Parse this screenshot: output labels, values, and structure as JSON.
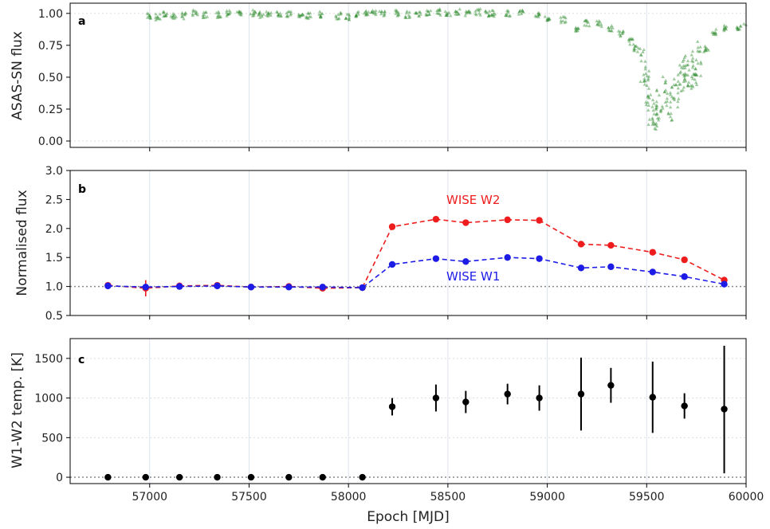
{
  "chart_data": [
    {
      "panel": "a",
      "type": "scatter",
      "ylabel": "ASAS-SN flux",
      "xlim": [
        56600,
        60000
      ],
      "ylim": [
        -0.05,
        1.08
      ],
      "yticks": [
        "0.00",
        "0.25",
        "0.50",
        "0.75",
        "1.00"
      ],
      "yticks_values": [
        0,
        0.25,
        0.5,
        0.75,
        1.0
      ],
      "vgrid": true,
      "hgrid_dotted": [
        0,
        1.0
      ],
      "color": "#2e8b2e",
      "marker": "triangle",
      "series": [
        {
          "x": [
            57000,
            57040,
            57080,
            57120,
            57170,
            57230,
            57280,
            57350,
            57400,
            57450,
            57520,
            57560,
            57600,
            57650,
            57700,
            57760,
            57800,
            57860,
            57950,
            58000,
            58050,
            58090,
            58130,
            58170,
            58250,
            58300,
            58350,
            58400,
            58450,
            58500,
            58550,
            58600,
            58650,
            58700,
            58730,
            58800,
            58870,
            58950,
            59000,
            59080,
            59150,
            59200,
            59260,
            59320,
            59370,
            59420,
            59450,
            59480,
            59500,
            59520,
            59540,
            59560,
            59590,
            59620,
            59650,
            59680,
            59700,
            59720,
            59740,
            59760,
            59800,
            59840,
            59900,
            59960,
            60000
          ],
          "y": [
            0.98,
            0.97,
            0.99,
            0.98,
            0.98,
            1.0,
            0.99,
            0.99,
            1.0,
            0.99,
            1.0,
            0.99,
            1.0,
            1.0,
            0.99,
            0.98,
            0.98,
            0.99,
            0.98,
            0.97,
            0.99,
            1.0,
            1.01,
            1.0,
            1.0,
            0.99,
            1.0,
            1.0,
            1.01,
            1.0,
            1.01,
            1.0,
            1.01,
            1.0,
            1.0,
            1.0,
            1.0,
            0.99,
            0.96,
            0.95,
            0.88,
            0.92,
            0.92,
            0.88,
            0.84,
            0.78,
            0.72,
            0.6,
            0.42,
            0.25,
            0.2,
            0.3,
            0.38,
            0.3,
            0.4,
            0.5,
            0.55,
            0.52,
            0.58,
            0.65,
            0.72,
            0.85,
            0.88,
            0.89,
            0.92
          ]
        }
      ]
    },
    {
      "panel": "b",
      "type": "line",
      "ylabel": "Normalised flux",
      "xlim": [
        56600,
        60000
      ],
      "ylim": [
        0.5,
        3.0
      ],
      "yticks": [
        "0.5",
        "1.0",
        "1.5",
        "2.0",
        "2.5",
        "3.0"
      ],
      "yticks_values": [
        0.5,
        1.0,
        1.5,
        2.0,
        2.5,
        3.0
      ],
      "vgrid": true,
      "hline_dotted": 1.0,
      "x": [
        56790,
        56980,
        57150,
        57340,
        57510,
        57700,
        57870,
        58070,
        58220,
        58440,
        58590,
        58800,
        58960,
        59170,
        59320,
        59530,
        59690,
        59890
      ],
      "series": [
        {
          "name": "WISE W2",
          "color": "#ee1c1c",
          "values": [
            1.02,
            0.97,
            1.01,
            1.02,
            0.99,
            1.0,
            0.97,
            0.98,
            2.03,
            2.16,
            2.1,
            2.15,
            2.14,
            1.73,
            1.71,
            1.59,
            1.46,
            1.11
          ],
          "errors": [
            0.02,
            0.14,
            0.02,
            0.03,
            0.02,
            0.03,
            0.05,
            0.02,
            0.02,
            0.02,
            0.02,
            0.02,
            0.02,
            0.03,
            0.02,
            0.04,
            0.02,
            0.03
          ]
        },
        {
          "name": "WISE W1",
          "color": "#1c1ce6",
          "values": [
            1.01,
            0.99,
            1.0,
            1.01,
            0.99,
            0.99,
            0.99,
            0.98,
            1.38,
            1.48,
            1.43,
            1.5,
            1.48,
            1.32,
            1.34,
            1.25,
            1.17,
            1.04
          ],
          "errors": [
            0.01,
            0.02,
            0.01,
            0.01,
            0.01,
            0.01,
            0.01,
            0.01,
            0.01,
            0.01,
            0.01,
            0.01,
            0.01,
            0.01,
            0.01,
            0.01,
            0.01,
            0.01
          ]
        }
      ]
    },
    {
      "panel": "c",
      "type": "scatter",
      "ylabel": "W1-W2 temp. [K]",
      "xlabel": "Epoch [MJD]",
      "xlim": [
        56600,
        60000
      ],
      "ylim": [
        -80,
        1750
      ],
      "yticks": [
        "0",
        "500",
        "1000",
        "1500"
      ],
      "yticks_values": [
        0,
        500,
        1000,
        1500
      ],
      "xticks": [
        "57000",
        "57500",
        "58000",
        "58500",
        "59000",
        "59500",
        "60000"
      ],
      "xticks_values": [
        57000,
        57500,
        58000,
        58500,
        59000,
        59500,
        60000
      ],
      "vgrid": true,
      "hgrid_dotted": [
        0,
        500,
        1000,
        1500
      ],
      "color": "#000000",
      "x": [
        56790,
        56980,
        57150,
        57340,
        57510,
        57700,
        57870,
        58070,
        58220,
        58440,
        58590,
        58800,
        58960,
        59170,
        59320,
        59530,
        59690,
        59890
      ],
      "values": [
        0,
        0,
        0,
        0,
        0,
        0,
        0,
        0,
        890,
        1000,
        950,
        1050,
        1000,
        1050,
        1160,
        1010,
        900,
        860
      ],
      "err_low": [
        0,
        0,
        0,
        0,
        0,
        0,
        0,
        0,
        110,
        170,
        140,
        130,
        160,
        460,
        220,
        450,
        160,
        810
      ],
      "err_high": [
        0,
        0,
        0,
        0,
        0,
        0,
        0,
        0,
        110,
        170,
        140,
        130,
        160,
        460,
        220,
        450,
        160,
        800
      ]
    }
  ],
  "panel_letters": [
    "a",
    "b",
    "c"
  ],
  "annotations": {
    "w2": "WISE W2",
    "w1": "WISE W1"
  }
}
